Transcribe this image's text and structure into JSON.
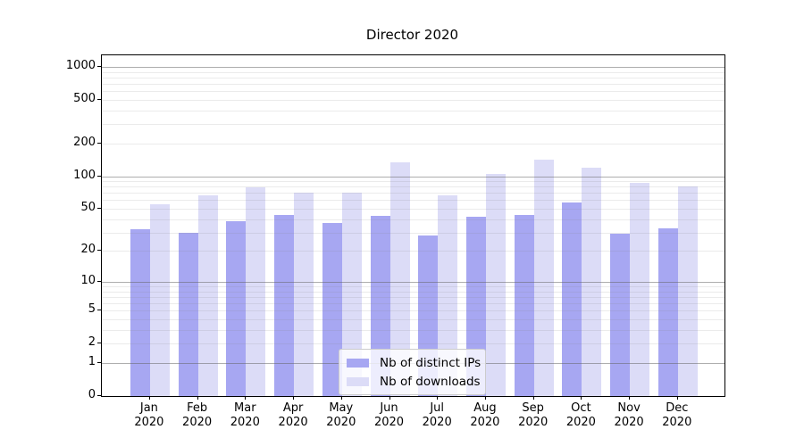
{
  "chart_data": {
    "type": "bar",
    "title": "Director 2020",
    "categories": [
      "Jan 2020",
      "Feb 2020",
      "Mar 2020",
      "Apr 2020",
      "May 2020",
      "Jun 2020",
      "Jul 2020",
      "Aug 2020",
      "Sep 2020",
      "Oct 2020",
      "Nov 2020",
      "Dec 2020"
    ],
    "series": [
      {
        "name": "Nb of distinct IPs",
        "color": "#a7a7f2",
        "values": [
          32,
          30,
          38,
          44,
          37,
          43,
          28,
          42,
          44,
          57,
          29,
          33
        ]
      },
      {
        "name": "Nb of downloads",
        "color": "#dcdcf7",
        "values": [
          55,
          67,
          79,
          70,
          71,
          135,
          67,
          104,
          142,
          120,
          86,
          80
        ]
      }
    ],
    "yscale": "log1p",
    "y_ticks": [
      0,
      1,
      2,
      5,
      10,
      20,
      50,
      100,
      200,
      500,
      1000
    ],
    "ylim": [
      0,
      1275
    ],
    "xlabel": "",
    "ylabel": "",
    "grid": true,
    "legend_position": "inside lower center"
  },
  "colors": {
    "background": "#ffffff",
    "spine": "#000000",
    "major_grid": "#b3b3b3",
    "minor_grid": "#e8e8e8",
    "legend_border": "#cccccc"
  }
}
